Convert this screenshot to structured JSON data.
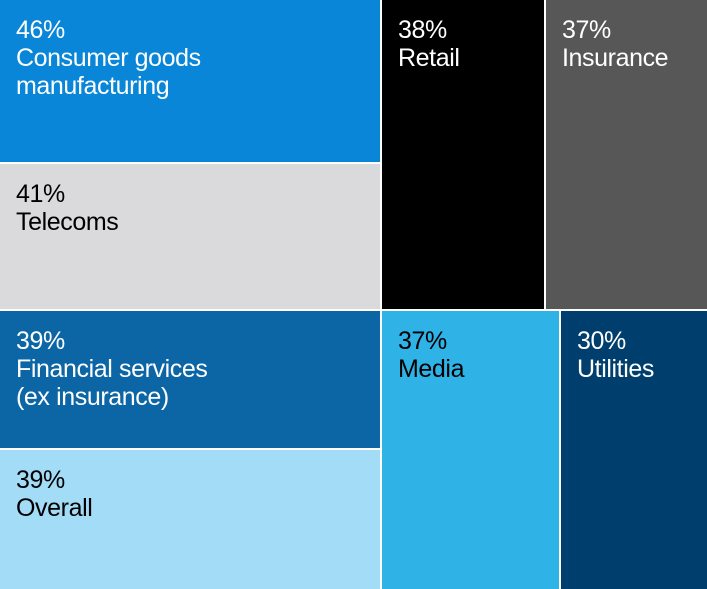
{
  "chart_data": {
    "type": "treemap",
    "title": "",
    "unit": "%",
    "items": [
      {
        "key": "consumer",
        "value": 46,
        "value_label": "46%",
        "label": "Consumer goods\nmanufacturing",
        "color": "#0a86d8",
        "text_color": "#ffffff"
      },
      {
        "key": "retail",
        "value": 38,
        "value_label": "38%",
        "label": "Retail",
        "color": "#000000",
        "text_color": "#ffffff"
      },
      {
        "key": "insurance",
        "value": 37,
        "value_label": "37%",
        "label": "Insurance",
        "color": "#575757",
        "text_color": "#ffffff"
      },
      {
        "key": "telecoms",
        "value": 41,
        "value_label": "41%",
        "label": "Telecoms",
        "color": "#dadadc",
        "text_color": "#000000"
      },
      {
        "key": "financial",
        "value": 39,
        "value_label": "39%",
        "label": "Financial services\n(ex insurance)",
        "color": "#0c66a6",
        "text_color": "#ffffff"
      },
      {
        "key": "media",
        "value": 37,
        "value_label": "37%",
        "label": "Media",
        "color": "#2fb2e6",
        "text_color": "#000000"
      },
      {
        "key": "utilities",
        "value": 30,
        "value_label": "30%",
        "label": "Utilities",
        "color": "#003f6d",
        "text_color": "#ffffff"
      },
      {
        "key": "overall",
        "value": 39,
        "value_label": "39%",
        "label": "Overall",
        "color": "#a3dcf6",
        "text_color": "#000000"
      }
    ]
  }
}
